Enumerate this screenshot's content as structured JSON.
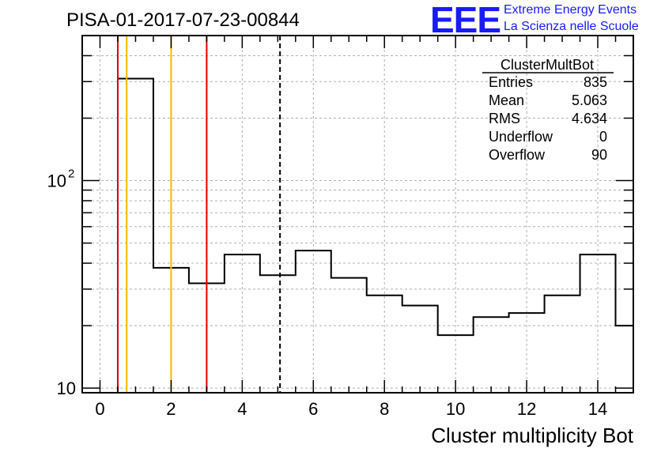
{
  "header": {
    "run_title": "PISA-01-2017-07-23-00844",
    "logo_text": "EEE",
    "logo_line1": "Extreme Energy Events",
    "logo_line2": "La Scienza nelle Scuole"
  },
  "colors": {
    "histogram": "#000000",
    "red_line": "#e00000",
    "orange_line": "#f5b800",
    "mean_line": "#000000",
    "grid": "#b0b0b0",
    "logo": "#1a1aff"
  },
  "stats_box": {
    "title": "ClusterMultBot",
    "rows": [
      {
        "label": "Entries",
        "value": "835"
      },
      {
        "label": "Mean",
        "value": "5.063"
      },
      {
        "label": "RMS",
        "value": "4.634"
      },
      {
        "label": "Underflow",
        "value": "0"
      },
      {
        "label": "Overflow",
        "value": "90"
      }
    ]
  },
  "chart_data": {
    "type": "bar",
    "style": "step-histogram",
    "xlabel": "Cluster multiplicity Bot",
    "ylabel": "",
    "xlim": [
      -0.5,
      15.0
    ],
    "ylim": [
      9.5,
      500
    ],
    "y_scale": "log",
    "grid": true,
    "x_ticks": [
      "0",
      "2",
      "4",
      "6",
      "8",
      "10",
      "12",
      "14"
    ],
    "y_tick_labels": [
      {
        "value": 10,
        "base": "10",
        "exp": ""
      },
      {
        "value": 100,
        "base": "10",
        "exp": "2"
      }
    ],
    "bins": [
      {
        "x": 0,
        "value": 0
      },
      {
        "x": 1,
        "value": 310
      },
      {
        "x": 2,
        "value": 38
      },
      {
        "x": 3,
        "value": 32
      },
      {
        "x": 4,
        "value": 44
      },
      {
        "x": 5,
        "value": 35
      },
      {
        "x": 6,
        "value": 46
      },
      {
        "x": 7,
        "value": 34
      },
      {
        "x": 8,
        "value": 28
      },
      {
        "x": 9,
        "value": 25
      },
      {
        "x": 10,
        "value": 18
      },
      {
        "x": 11,
        "value": 22
      },
      {
        "x": 12,
        "value": 23
      },
      {
        "x": 13,
        "value": 28
      },
      {
        "x": 14,
        "value": 44
      },
      {
        "x": 15,
        "value": 20
      }
    ],
    "vertical_lines": [
      {
        "x": 0.5,
        "color": "red",
        "style": "solid"
      },
      {
        "x": 0.75,
        "color": "orange",
        "style": "solid"
      },
      {
        "x": 2.0,
        "color": "orange",
        "style": "solid"
      },
      {
        "x": 3.0,
        "color": "red",
        "style": "solid"
      },
      {
        "x": 5.063,
        "color": "black",
        "style": "dashed"
      }
    ]
  }
}
